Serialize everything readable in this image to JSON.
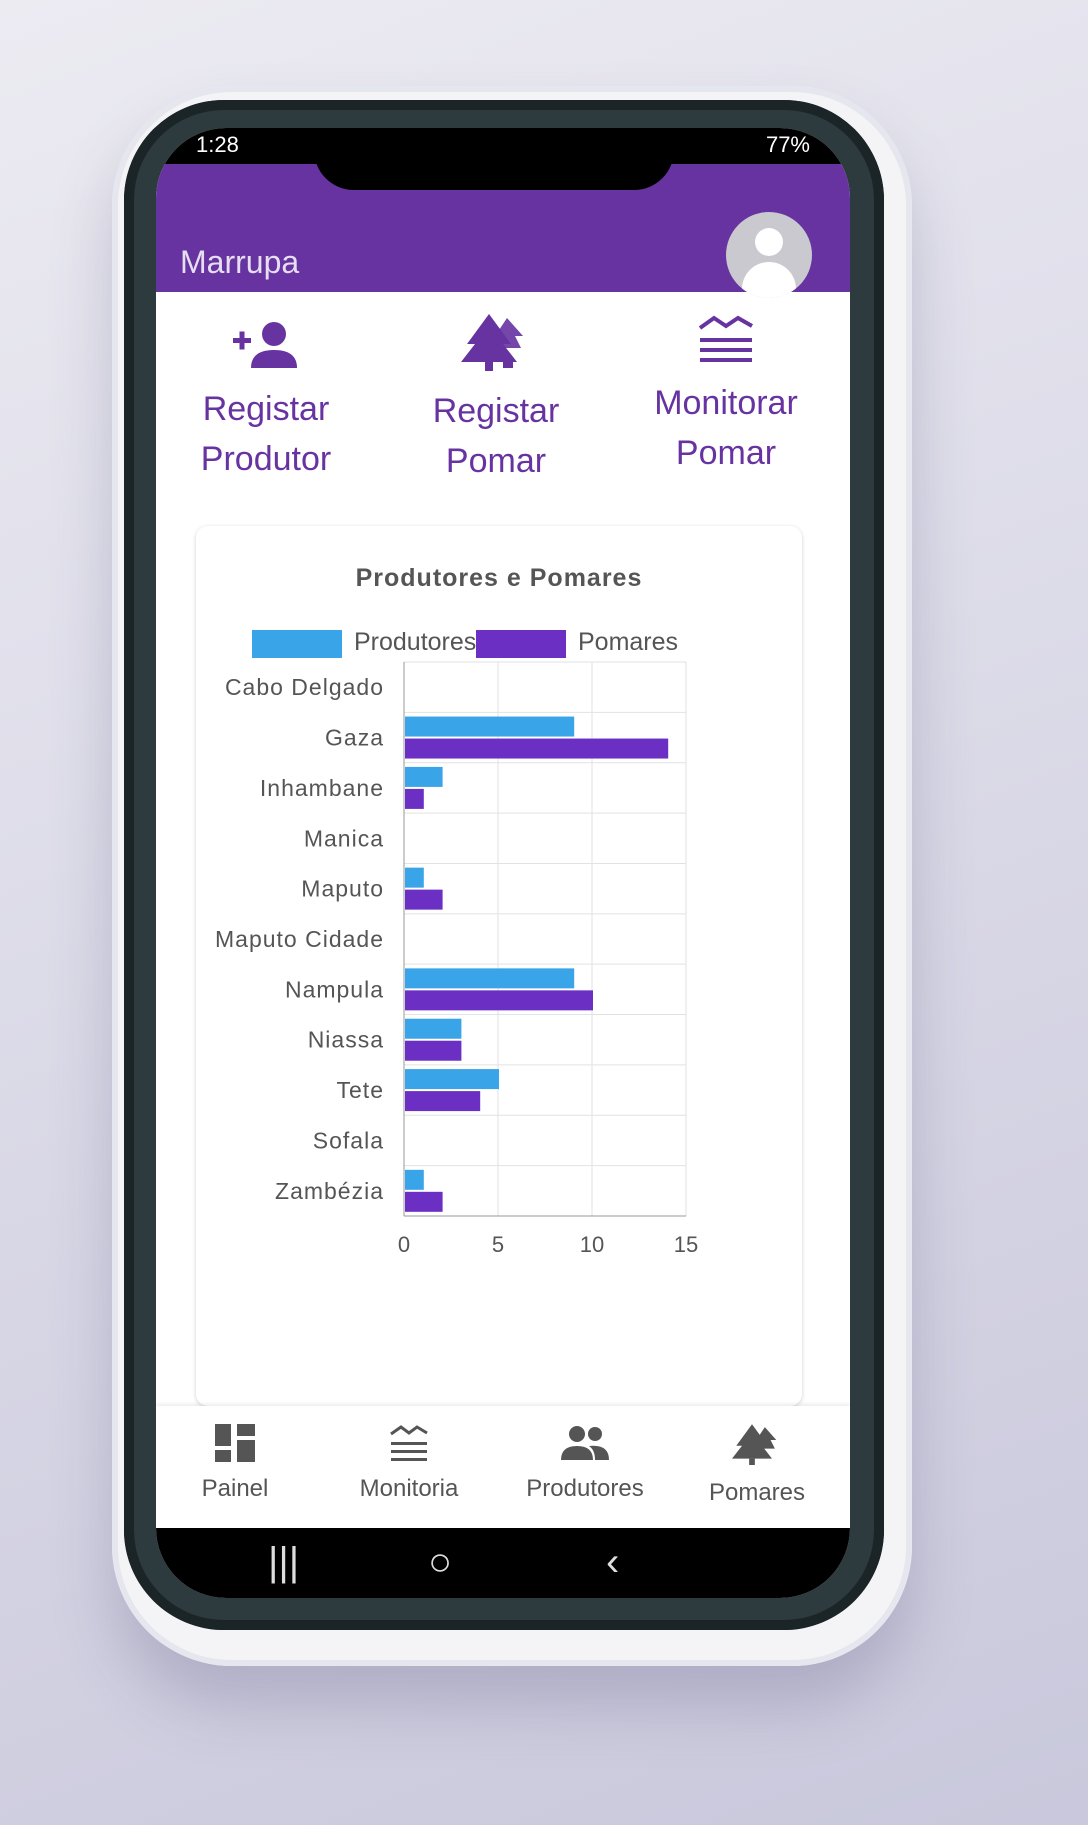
{
  "status_bar": {
    "time": "1:28",
    "right": "77%"
  },
  "app": {
    "title": "Marrupa"
  },
  "actions": [
    {
      "label": "Registar\nProdutor",
      "icon": "add-person-icon"
    },
    {
      "label": "Registar\nPomar",
      "icon": "trees-icon"
    },
    {
      "label": "Monitorar\nPomar",
      "icon": "monitor-waves-icon"
    }
  ],
  "colors": {
    "primary": "#6633a1",
    "produtores": "#3aa4e8",
    "pomares": "#6b2fc4"
  },
  "chart_data": {
    "type": "bar",
    "orientation": "horizontal",
    "title": "Produtores e Pomares",
    "categories": [
      "Cabo Delgado",
      "Gaza",
      "Inhambane",
      "Manica",
      "Maputo",
      "Maputo Cidade",
      "Nampula",
      "Niassa",
      "Tete",
      "Sofala",
      "Zambézia"
    ],
    "series": [
      {
        "name": "Produtores",
        "values": [
          0,
          9,
          2,
          0,
          1,
          0,
          9,
          3,
          5,
          0,
          1
        ]
      },
      {
        "name": "Pomares",
        "values": [
          0,
          14,
          1,
          0,
          2,
          0,
          10,
          3,
          4,
          0,
          2
        ]
      }
    ],
    "xlim": [
      0,
      15
    ],
    "xticks": [
      "0",
      "5",
      "10",
      "15"
    ],
    "legend_position": "top",
    "grid": true
  },
  "bottom_nav": [
    {
      "label": "Painel",
      "icon": "dashboard-icon"
    },
    {
      "label": "Monitoria",
      "icon": "monitor-waves-icon"
    },
    {
      "label": "Produtores",
      "icon": "people-icon"
    },
    {
      "label": "Pomares",
      "icon": "trees-icon"
    }
  ],
  "system_nav": {
    "recent": "|||",
    "home": "○",
    "back": "‹"
  }
}
